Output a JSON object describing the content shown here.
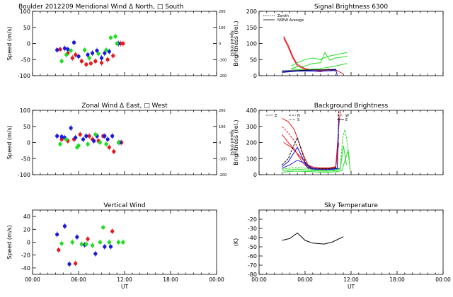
{
  "colors": {
    "red": "#e8191e",
    "blue": "#1a1adb",
    "green": "#22dd22",
    "black": "#000000"
  },
  "x_axis": {
    "ticks": [
      "00:00",
      "06:00",
      "12:00",
      "18:00",
      "00:00"
    ],
    "label": "UT"
  },
  "chart_data": [
    {
      "id": "meridional",
      "type": "scatter",
      "title": "Boulder  2012209    Meridional Wind  Δ North, □ South",
      "ylabel": "Speed (m/s)",
      "ylabel_right": "Speed (m/s)",
      "ylim": [
        -100,
        100
      ],
      "yticks": [
        "-100",
        "-50",
        "0",
        "50",
        "100"
      ],
      "yticks_right": [
        "-200",
        "-100",
        "0",
        "100",
        "200"
      ],
      "xlim": [
        0,
        24
      ],
      "series": [
        {
          "color": "red",
          "x": [
            3.6,
            4.6,
            5.2,
            5.6,
            6.4,
            7.0,
            7.6,
            8.2,
            9.0,
            9.8,
            10.5,
            11.5,
            11.8
          ],
          "y": [
            -18,
            -30,
            -45,
            -35,
            -55,
            -65,
            -62,
            -55,
            -60,
            -50,
            -38,
            0,
            0
          ]
        },
        {
          "color": "blue",
          "x": [
            3.2,
            4.2,
            4.6,
            5.4,
            6.0,
            7.2,
            7.8,
            8.4,
            9.0,
            9.4,
            10.0,
            11.2
          ],
          "y": [
            -20,
            -15,
            -18,
            3,
            -40,
            -35,
            -30,
            -22,
            -45,
            -30,
            -25,
            0
          ]
        },
        {
          "color": "green",
          "x": [
            3.8,
            4.4,
            5.0,
            6.8,
            7.4,
            8.6,
            9.6,
            10.2,
            10.8,
            11.0
          ],
          "y": [
            -55,
            -35,
            -22,
            -20,
            -45,
            -32,
            -20,
            18,
            22,
            0
          ]
        }
      ]
    },
    {
      "id": "zonal",
      "type": "scatter",
      "title": "Zonal Wind     Δ East, □ West",
      "ylabel": "Speed (m/s)",
      "ylabel_right": "Speed (m/s)",
      "ylim": [
        -100,
        100
      ],
      "yticks": [
        "-100",
        "-50",
        "0",
        "50",
        "100"
      ],
      "yticks_right": [
        "-200",
        "-100",
        "0",
        "100",
        "200"
      ],
      "xlim": [
        0,
        24
      ],
      "series": [
        {
          "color": "red",
          "x": [
            3.8,
            4.6,
            5.4,
            6.2,
            7.4,
            7.8,
            8.6,
            9.2,
            10.0,
            10.6,
            11.6
          ],
          "y": [
            10,
            5,
            10,
            25,
            20,
            10,
            5,
            20,
            -15,
            -28,
            0
          ]
        },
        {
          "color": "blue",
          "x": [
            3.2,
            3.8,
            4.2,
            5.0,
            5.6,
            6.6,
            7.0,
            8.0,
            8.4,
            9.4,
            9.8,
            10.4,
            11.4
          ],
          "y": [
            20,
            18,
            15,
            45,
            15,
            10,
            20,
            5,
            20,
            20,
            10,
            20,
            0
          ]
        },
        {
          "color": "green",
          "x": [
            3.6,
            4.4,
            5.8,
            6.0,
            7.2,
            8.2,
            8.8,
            9.6,
            11.2
          ],
          "y": [
            -5,
            10,
            -15,
            -10,
            -5,
            25,
            0,
            -5,
            0
          ]
        }
      ]
    },
    {
      "id": "vertical",
      "type": "scatter",
      "title": "Vertical Wind",
      "ylabel": "Speed (m/s)",
      "ylim": [
        -50,
        50
      ],
      "yticks": [
        "-40",
        "-20",
        "0",
        "20",
        "40"
      ],
      "xlim": [
        0,
        24
      ],
      "series": [
        {
          "color": "red",
          "x": [
            3.4,
            5.6,
            7.2,
            10.4
          ],
          "y": [
            -12,
            -33,
            5,
            17
          ]
        },
        {
          "color": "blue",
          "x": [
            3.2,
            4.2,
            4.8,
            5.8,
            6.8,
            8.2,
            9.4,
            10.2
          ],
          "y": [
            12,
            25,
            -34,
            8,
            -4,
            -18,
            -7,
            -7
          ]
        },
        {
          "color": "green",
          "x": [
            3.8,
            5.2,
            6.4,
            7.0,
            7.8,
            8.8,
            9.2,
            10.0,
            11.2,
            11.8
          ],
          "y": [
            -2,
            0,
            -3,
            -3,
            -5,
            0,
            23,
            0,
            0,
            0
          ]
        }
      ]
    },
    {
      "id": "signal",
      "type": "line",
      "title": "Signal Brightness        6300",
      "ylabel": "Brightness (rel.)",
      "ylim": [
        0,
        200
      ],
      "yticks": [
        "0",
        "50",
        "100",
        "150",
        "200"
      ],
      "xlim": [
        0,
        24
      ],
      "legend": [
        "Zenith",
        "NSEW Average"
      ],
      "series": [
        {
          "color": "red",
          "x": [
            3.2,
            3.8,
            4.4,
            5.0,
            6.0,
            7.0,
            8.0,
            9.0,
            10.0,
            11.0
          ],
          "y": [
            122,
            95,
            60,
            35,
            22,
            18,
            15,
            20,
            18,
            5
          ]
        },
        {
          "color": "red",
          "x": [
            3.2,
            3.8,
            4.4,
            5.0,
            6.0,
            7.0,
            8.0,
            9.0,
            10.0
          ],
          "y": [
            118,
            88,
            55,
            30,
            20,
            15,
            12,
            18,
            15
          ]
        },
        {
          "color": "green",
          "x": [
            4.2,
            5.0,
            6.0,
            7.0,
            8.0,
            9.0,
            10.0,
            11.5
          ],
          "y": [
            30,
            40,
            50,
            55,
            50,
            60,
            65,
            72
          ]
        },
        {
          "color": "green",
          "x": [
            4.2,
            5.0,
            6.0,
            7.0,
            8.0,
            8.6,
            9.2,
            10.0,
            11.5
          ],
          "y": [
            22,
            28,
            30,
            38,
            40,
            72,
            48,
            55,
            60
          ]
        },
        {
          "color": "green",
          "x": [
            4.2,
            6.0,
            8.0,
            10.0,
            11.5
          ],
          "y": [
            20,
            18,
            22,
            30,
            38
          ]
        },
        {
          "color": "blue",
          "x": [
            3.0,
            4.0,
            5.0,
            6.0,
            7.0,
            8.0,
            9.0,
            10.0
          ],
          "y": [
            10,
            12,
            14,
            14,
            14,
            14,
            15,
            16
          ]
        },
        {
          "color": "blue",
          "x": [
            3.0,
            5.0,
            7.0,
            9.0,
            10.0,
            10.2
          ],
          "y": [
            12,
            15,
            17,
            18,
            20,
            0
          ]
        },
        {
          "color": "black",
          "x": [
            3.0,
            5.0,
            7.0,
            9.0,
            10.0
          ],
          "y": [
            15,
            16,
            18,
            18,
            18
          ]
        }
      ]
    },
    {
      "id": "background",
      "type": "line",
      "title": "Background Brightness",
      "ylabel": "Brightness (rel.)",
      "ylim": [
        0,
        400
      ],
      "yticks": [
        "0",
        "100",
        "200",
        "300",
        "400"
      ],
      "xlim": [
        0,
        24
      ],
      "legend": [
        "Z",
        "N",
        "S",
        "W",
        "E"
      ],
      "series": [
        {
          "color": "red",
          "x": [
            3.0,
            3.8,
            4.6,
            5.2,
            5.8,
            6.4,
            7.2,
            8.2,
            9.2,
            10.0,
            10.4,
            10.6
          ],
          "y": [
            350,
            330,
            280,
            200,
            120,
            60,
            45,
            42,
            42,
            50,
            300,
            400
          ]
        },
        {
          "color": "red",
          "x": [
            3.0,
            3.8,
            4.6,
            5.2,
            5.8,
            6.4,
            7.2,
            8.2,
            9.2,
            10.0,
            10.4
          ],
          "y": [
            300,
            260,
            210,
            150,
            90,
            50,
            40,
            38,
            40,
            45,
            250
          ]
        },
        {
          "color": "red",
          "x": [
            3.0,
            3.8,
            4.6,
            5.2,
            5.8,
            6.4,
            7.2,
            8.2,
            9.2,
            10.0,
            10.4
          ],
          "y": [
            250,
            200,
            160,
            110,
            70,
            40,
            35,
            33,
            36,
            40,
            200
          ]
        },
        {
          "color": "red",
          "x": [
            3.2,
            4.2,
            5.0,
            5.8,
            6.4,
            7.2,
            8.2,
            9.2,
            10.0
          ],
          "y": [
            200,
            170,
            130,
            90,
            55,
            38,
            35,
            37,
            42
          ]
        },
        {
          "color": "black",
          "x": [
            3.0,
            3.8,
            4.6,
            5.0,
            5.6,
            6.2,
            6.8,
            7.6,
            8.6,
            9.6,
            10.2,
            10.4
          ],
          "y": [
            60,
            100,
            190,
            230,
            140,
            60,
            40,
            38,
            38,
            40,
            45,
            400
          ]
        },
        {
          "color": "blue",
          "x": [
            3.0,
            3.8,
            4.6,
            5.0,
            5.6,
            6.2,
            6.8,
            7.6,
            8.6,
            9.6,
            10.2,
            10.4
          ],
          "y": [
            50,
            80,
            140,
            170,
            110,
            50,
            35,
            32,
            32,
            35,
            40,
            350
          ]
        },
        {
          "color": "blue",
          "x": [
            3.0,
            4.0,
            5.0,
            6.0,
            7.0,
            8.0,
            9.0,
            10.0,
            10.6
          ],
          "y": [
            40,
            60,
            90,
            70,
            40,
            30,
            30,
            35,
            40
          ]
        },
        {
          "color": "green",
          "x": [
            3.0,
            4.0,
            5.0,
            6.0,
            7.0,
            8.0,
            9.0,
            10.0,
            10.6,
            10.9,
            11.2,
            11.5,
            11.8
          ],
          "y": [
            35,
            40,
            45,
            40,
            30,
            28,
            28,
            30,
            40,
            230,
            280,
            200,
            90
          ]
        },
        {
          "color": "green",
          "x": [
            3.0,
            4.0,
            5.0,
            6.0,
            7.0,
            8.0,
            9.0,
            10.0,
            10.6,
            11.0,
            11.4
          ],
          "y": [
            25,
            30,
            35,
            30,
            25,
            22,
            22,
            25,
            35,
            180,
            60
          ]
        },
        {
          "color": "green",
          "x": [
            3.0,
            4.0,
            5.0,
            6.0,
            7.0,
            8.0,
            9.0,
            10.0,
            10.8,
            11.6,
            11.9
          ],
          "y": [
            15,
            20,
            22,
            20,
            18,
            15,
            15,
            18,
            25,
            150,
            20
          ]
        }
      ]
    },
    {
      "id": "sky",
      "type": "line",
      "title": "Sky Temperature",
      "ylabel": "(K)",
      "ylim": [
        -80,
        -10
      ],
      "yticks": [
        "-80",
        "-70",
        "-60",
        "-50",
        "-40",
        "-30",
        "-20"
      ],
      "xlim": [
        0,
        24
      ],
      "series": [
        {
          "color": "black",
          "x": [
            3.0,
            4.0,
            5.0,
            6.0,
            7.0,
            8.5,
            9.5,
            11.0
          ],
          "y": [
            -43,
            -41,
            -35,
            -43,
            -46,
            -47,
            -45,
            -39
          ]
        }
      ]
    }
  ]
}
